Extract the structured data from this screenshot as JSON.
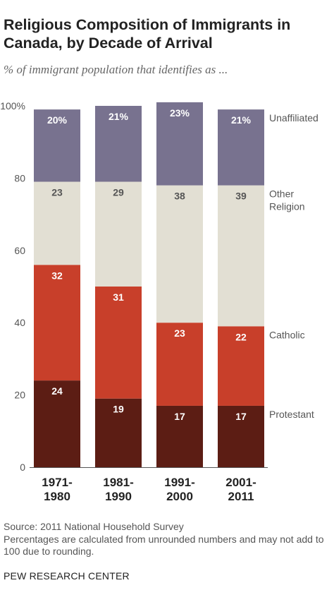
{
  "title": "Religious Composition of Immigrants in Canada, by Decade of Arrival",
  "subtitle": "% of immigrant population that identifies as ...",
  "source": "Source: 2011 National Household Survey",
  "note": "Percentages are calculated from unrounded numbers and may not add to 100 due to rounding.",
  "org": "PEW RESEARCH CENTER",
  "chart_data": {
    "type": "bar",
    "stacked": true,
    "categories": [
      [
        "1971-",
        "1980"
      ],
      [
        "1981-",
        "1990"
      ],
      [
        "1991-",
        "2000"
      ],
      [
        "2001-",
        "2011"
      ]
    ],
    "ylim": [
      0,
      100
    ],
    "yticks": [
      0,
      20,
      40,
      60,
      80,
      100
    ],
    "ytick_labels": [
      "0",
      "20",
      "40",
      "60",
      "80",
      "100%"
    ],
    "grid": false,
    "legend": "right, labels beside last bar",
    "series": [
      {
        "name": "Protestant",
        "color": "#5c1d14",
        "values": [
          24,
          19,
          17,
          17
        ],
        "labels": [
          "24",
          "19",
          "17",
          "17"
        ]
      },
      {
        "name": "Catholic",
        "color": "#c83f2a",
        "values": [
          32,
          31,
          23,
          22
        ],
        "labels": [
          "32",
          "31",
          "23",
          "22"
        ]
      },
      {
        "name": "Other Religion",
        "legend_lines": [
          "Other",
          "Religion"
        ],
        "color": "#e2dfd3",
        "values": [
          23,
          29,
          38,
          39
        ],
        "labels": [
          "23",
          "29",
          "38",
          "39"
        ]
      },
      {
        "name": "Unaffiliated",
        "color": "#78728f",
        "values": [
          20,
          21,
          23,
          21
        ],
        "labels": [
          "20%",
          "21%",
          "23%",
          "21%"
        ]
      }
    ]
  }
}
